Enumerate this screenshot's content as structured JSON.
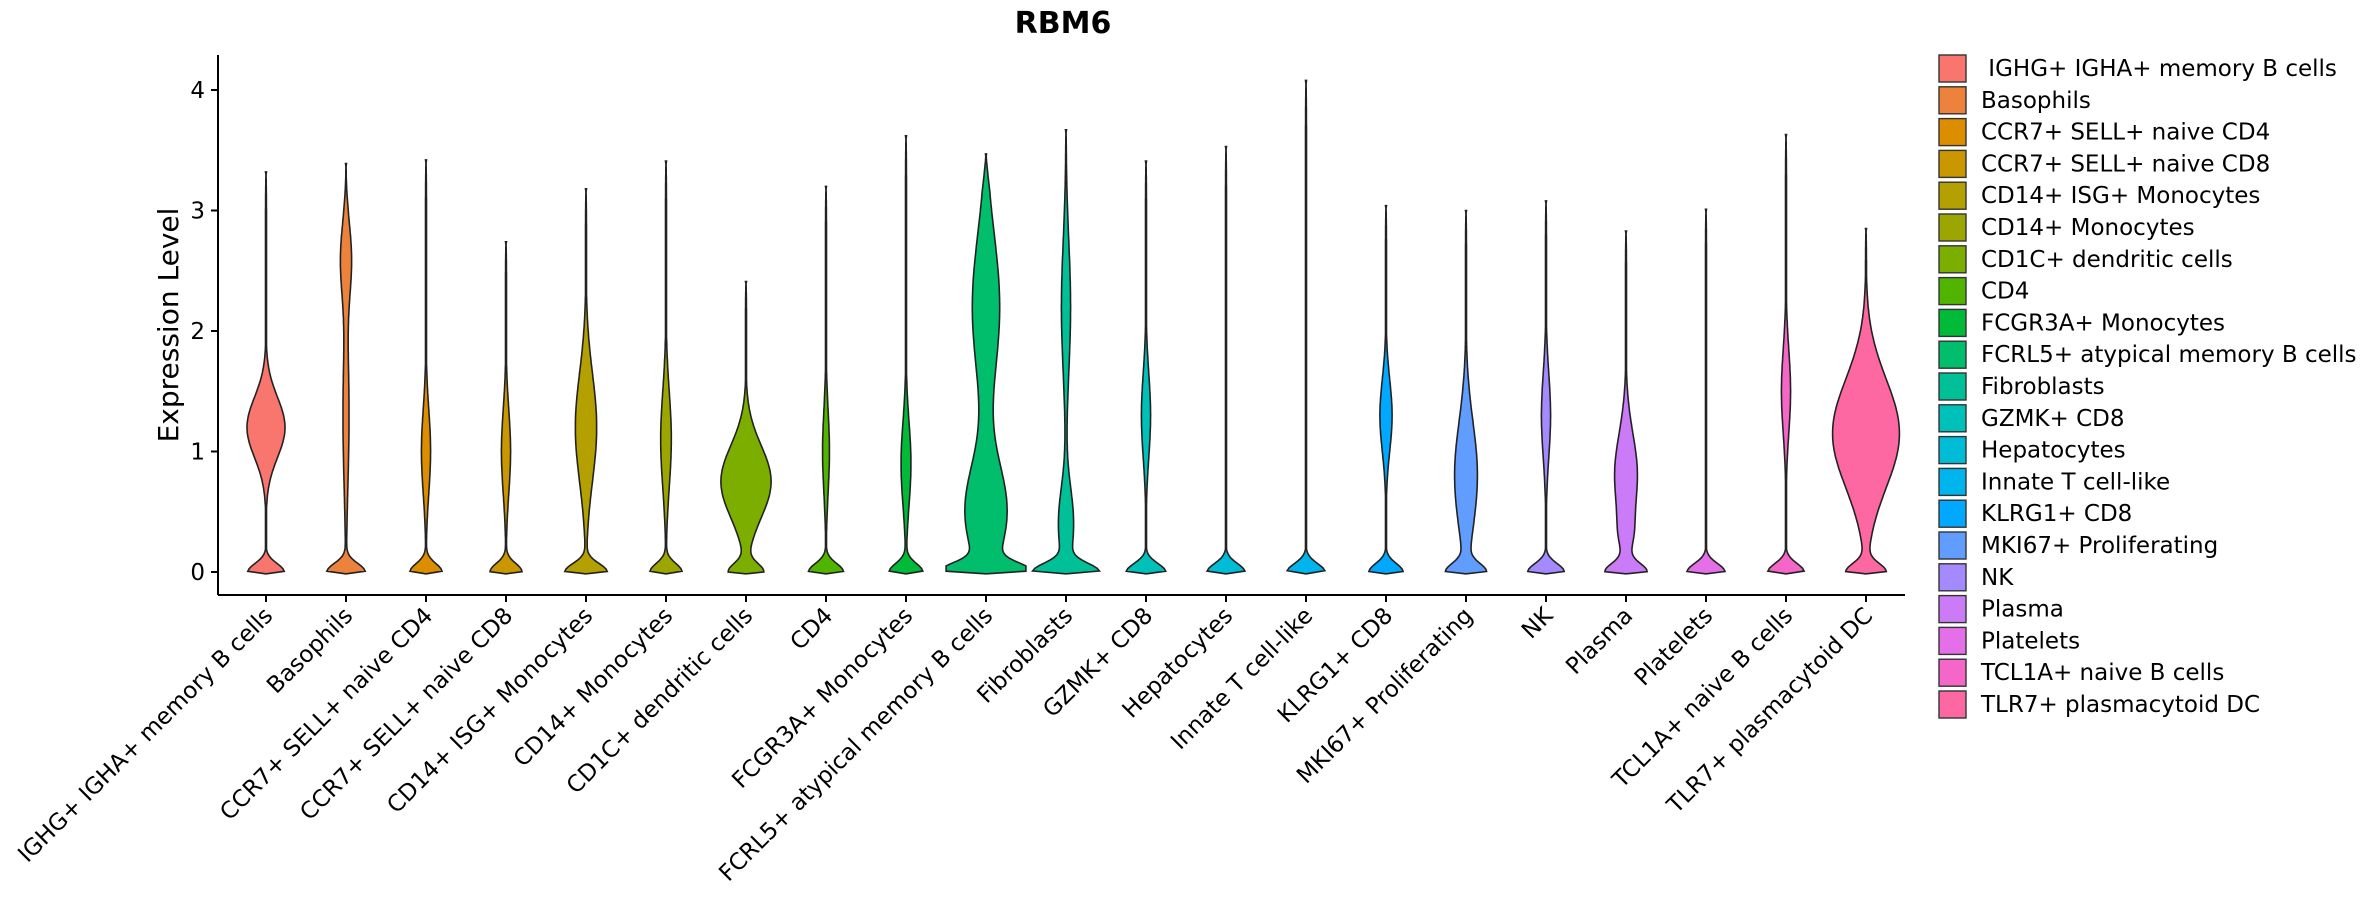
{
  "chart_data": {
    "type": "violin",
    "title": "RBM6",
    "xlabel": "",
    "ylabel": "Expression Level",
    "ylim": [
      -0.2,
      4.3
    ],
    "yticks": [
      "0",
      "1",
      "2",
      "3",
      "4"
    ],
    "legend_position": "right",
    "series": [
      {
        "name": "IGHG+ IGHA+ memory B cells",
        "legend_label": " IGHG+ IGHA+ memory B cells",
        "color": "#F8766D",
        "max": 3.32,
        "zero_width": 0.48,
        "modes": [
          [
            1.2,
            0.25,
            0.5
          ]
        ]
      },
      {
        "name": "Basophils",
        "legend_label": "Basophils",
        "color": "#EC823C",
        "max": 3.39,
        "zero_width": 0.5,
        "modes": [
          [
            2.6,
            0.3,
            0.14
          ],
          [
            1.3,
            0.6,
            0.08
          ]
        ]
      },
      {
        "name": "CCR7+ SELL+ naive CD4",
        "legend_label": "CCR7+ SELL+ naive CD4",
        "color": "#DD8D00",
        "max": 3.42,
        "zero_width": 0.42,
        "modes": [
          [
            1.0,
            0.35,
            0.12
          ]
        ]
      },
      {
        "name": "CCR7+ SELL+ naive CD8",
        "legend_label": "CCR7+ SELL+ naive CD8",
        "color": "#CA9700",
        "max": 2.74,
        "zero_width": 0.42,
        "modes": [
          [
            1.0,
            0.35,
            0.12
          ]
        ]
      },
      {
        "name": "CD14+ ISG+ Monocytes",
        "legend_label": "CD14+ ISG+ Monocytes",
        "color": "#B4A000",
        "max": 3.18,
        "zero_width": 0.55,
        "modes": [
          [
            1.2,
            0.45,
            0.28
          ]
        ]
      },
      {
        "name": "CD14+ Monocytes",
        "legend_label": "CD14+ Monocytes",
        "color": "#9BA700",
        "max": 3.41,
        "zero_width": 0.42,
        "modes": [
          [
            1.1,
            0.4,
            0.14
          ]
        ]
      },
      {
        "name": "CD1C+ dendritic cells",
        "legend_label": "CD1C+ dendritic cells",
        "color": "#7CAE00",
        "max": 2.41,
        "zero_width": 0.44,
        "modes": [
          [
            0.75,
            0.3,
            0.66
          ]
        ]
      },
      {
        "name": "CD4",
        "legend_label": "CD4",
        "color": "#50B400",
        "max": 3.2,
        "zero_width": 0.46,
        "modes": [
          [
            1.0,
            0.35,
            0.09
          ]
        ]
      },
      {
        "name": "FCGR3A+ Monocytes",
        "legend_label": "FCGR3A+ Monocytes",
        "color": "#00BA38",
        "max": 3.62,
        "zero_width": 0.44,
        "modes": [
          [
            0.9,
            0.35,
            0.13
          ]
        ]
      },
      {
        "name": "FCRL5+ atypical memory B cells",
        "legend_label": "FCRL5+ atypical memory B cells",
        "color": "#00BE6C",
        "max": 3.47,
        "zero_width": 1.0,
        "modes": [
          [
            2.2,
            0.6,
            0.36
          ],
          [
            0.5,
            0.4,
            0.55
          ]
        ]
      },
      {
        "name": "Fibroblasts",
        "legend_label": "Fibroblasts",
        "color": "#00C097",
        "max": 3.67,
        "zero_width": 0.8,
        "modes": [
          [
            2.2,
            0.55,
            0.12
          ],
          [
            0.4,
            0.3,
            0.2
          ]
        ]
      },
      {
        "name": "GZMK+ CD8",
        "legend_label": "GZMK+ CD8",
        "color": "#00C0BA",
        "max": 3.41,
        "zero_width": 0.52,
        "modes": [
          [
            1.3,
            0.35,
            0.12
          ]
        ]
      },
      {
        "name": "Hepatocytes",
        "legend_label": "Hepatocytes",
        "color": "#00BCD7",
        "max": 3.53,
        "zero_width": 0.5,
        "modes": []
      },
      {
        "name": "Innate T cell-like",
        "legend_label": "Innate T cell-like",
        "color": "#00B4EE",
        "max": 4.08,
        "zero_width": 0.5,
        "modes": []
      },
      {
        "name": "KLRG1+ CD8",
        "legend_label": "KLRG1+ CD8",
        "color": "#00A9FF",
        "max": 3.04,
        "zero_width": 0.45,
        "modes": [
          [
            1.3,
            0.3,
            0.16
          ]
        ]
      },
      {
        "name": "MKI67+ Proliferating",
        "legend_label": "MKI67+ Proliferating",
        "color": "#619CFF",
        "max": 3.0,
        "zero_width": 0.48,
        "modes": [
          [
            0.8,
            0.45,
            0.3
          ]
        ]
      },
      {
        "name": "NK",
        "legend_label": "NK",
        "color": "#A58AFF",
        "max": 3.08,
        "zero_width": 0.48,
        "modes": [
          [
            1.3,
            0.35,
            0.12
          ]
        ]
      },
      {
        "name": "Plasma",
        "legend_label": "Plasma",
        "color": "#CB7BF8",
        "max": 2.83,
        "zero_width": 0.52,
        "modes": [
          [
            0.8,
            0.35,
            0.3
          ],
          [
            0.3,
            0.15,
            0.1
          ]
        ]
      },
      {
        "name": "Platelets",
        "legend_label": "Platelets",
        "color": "#E56FE8",
        "max": 3.01,
        "zero_width": 0.5,
        "modes": []
      },
      {
        "name": "TCL1A+ naive B cells",
        "legend_label": "TCL1A+ naive B cells",
        "color": "#F566C9",
        "max": 3.63,
        "zero_width": 0.48,
        "modes": [
          [
            1.5,
            0.35,
            0.12
          ]
        ]
      },
      {
        "name": "TLR7+ plasmacytoid DC",
        "legend_label": "TLR7+ plasmacytoid DC",
        "color": "#FE68A2",
        "max": 2.85,
        "zero_width": 0.5,
        "modes": [
          [
            1.15,
            0.45,
            0.88
          ]
        ]
      }
    ]
  }
}
